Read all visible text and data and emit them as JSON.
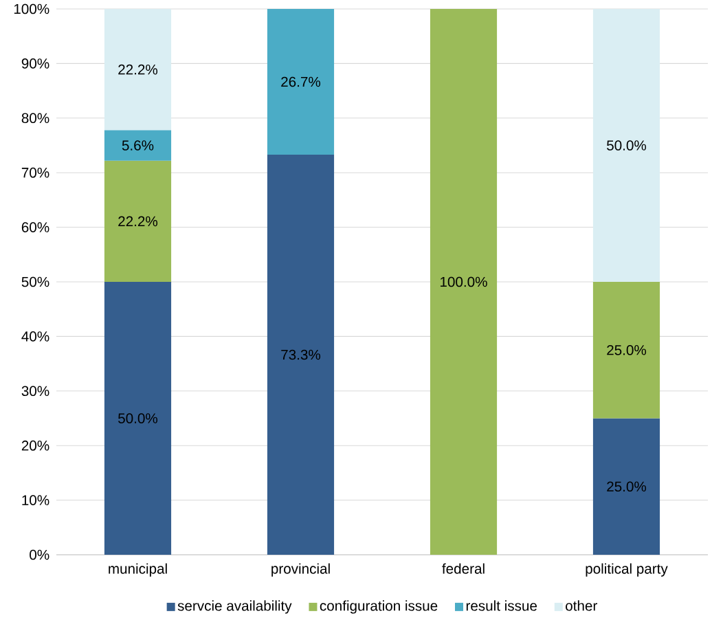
{
  "chart_data": {
    "type": "bar",
    "stacked": true,
    "categories": [
      "municipal",
      "provincial",
      "federal",
      "political party"
    ],
    "series": [
      {
        "name": "servcie availability",
        "color": "#355e8e",
        "values": [
          50.0,
          73.3,
          null,
          25.0
        ],
        "value_labels": [
          "50.0%",
          "73.3%",
          null,
          "25.0%"
        ]
      },
      {
        "name": "configuration issue",
        "color": "#9bbb59",
        "values": [
          22.2,
          null,
          100.0,
          25.0
        ],
        "value_labels": [
          "22.2%",
          null,
          "100.0%",
          "25.0%"
        ]
      },
      {
        "name": "result issue",
        "color": "#4bacc6",
        "values": [
          5.6,
          26.7,
          null,
          null
        ],
        "value_labels": [
          "5.6%",
          "26.7%",
          null,
          null
        ]
      },
      {
        "name": "other",
        "color": "#daeef3",
        "values": [
          22.2,
          null,
          null,
          50.0
        ],
        "value_labels": [
          "22.2%",
          null,
          null,
          "50.0%"
        ]
      }
    ],
    "ylim": [
      0,
      100
    ],
    "yticks": [
      {
        "value": 0,
        "label": "0%"
      },
      {
        "value": 10,
        "label": "10%"
      },
      {
        "value": 20,
        "label": "20%"
      },
      {
        "value": 30,
        "label": "30%"
      },
      {
        "value": 40,
        "label": "40%"
      },
      {
        "value": 50,
        "label": "50%"
      },
      {
        "value": 60,
        "label": "60%"
      },
      {
        "value": 70,
        "label": "70%"
      },
      {
        "value": 80,
        "label": "80%"
      },
      {
        "value": 90,
        "label": "90%"
      },
      {
        "value": 100,
        "label": "100%"
      }
    ],
    "grid": "y",
    "legend": "bottom"
  }
}
